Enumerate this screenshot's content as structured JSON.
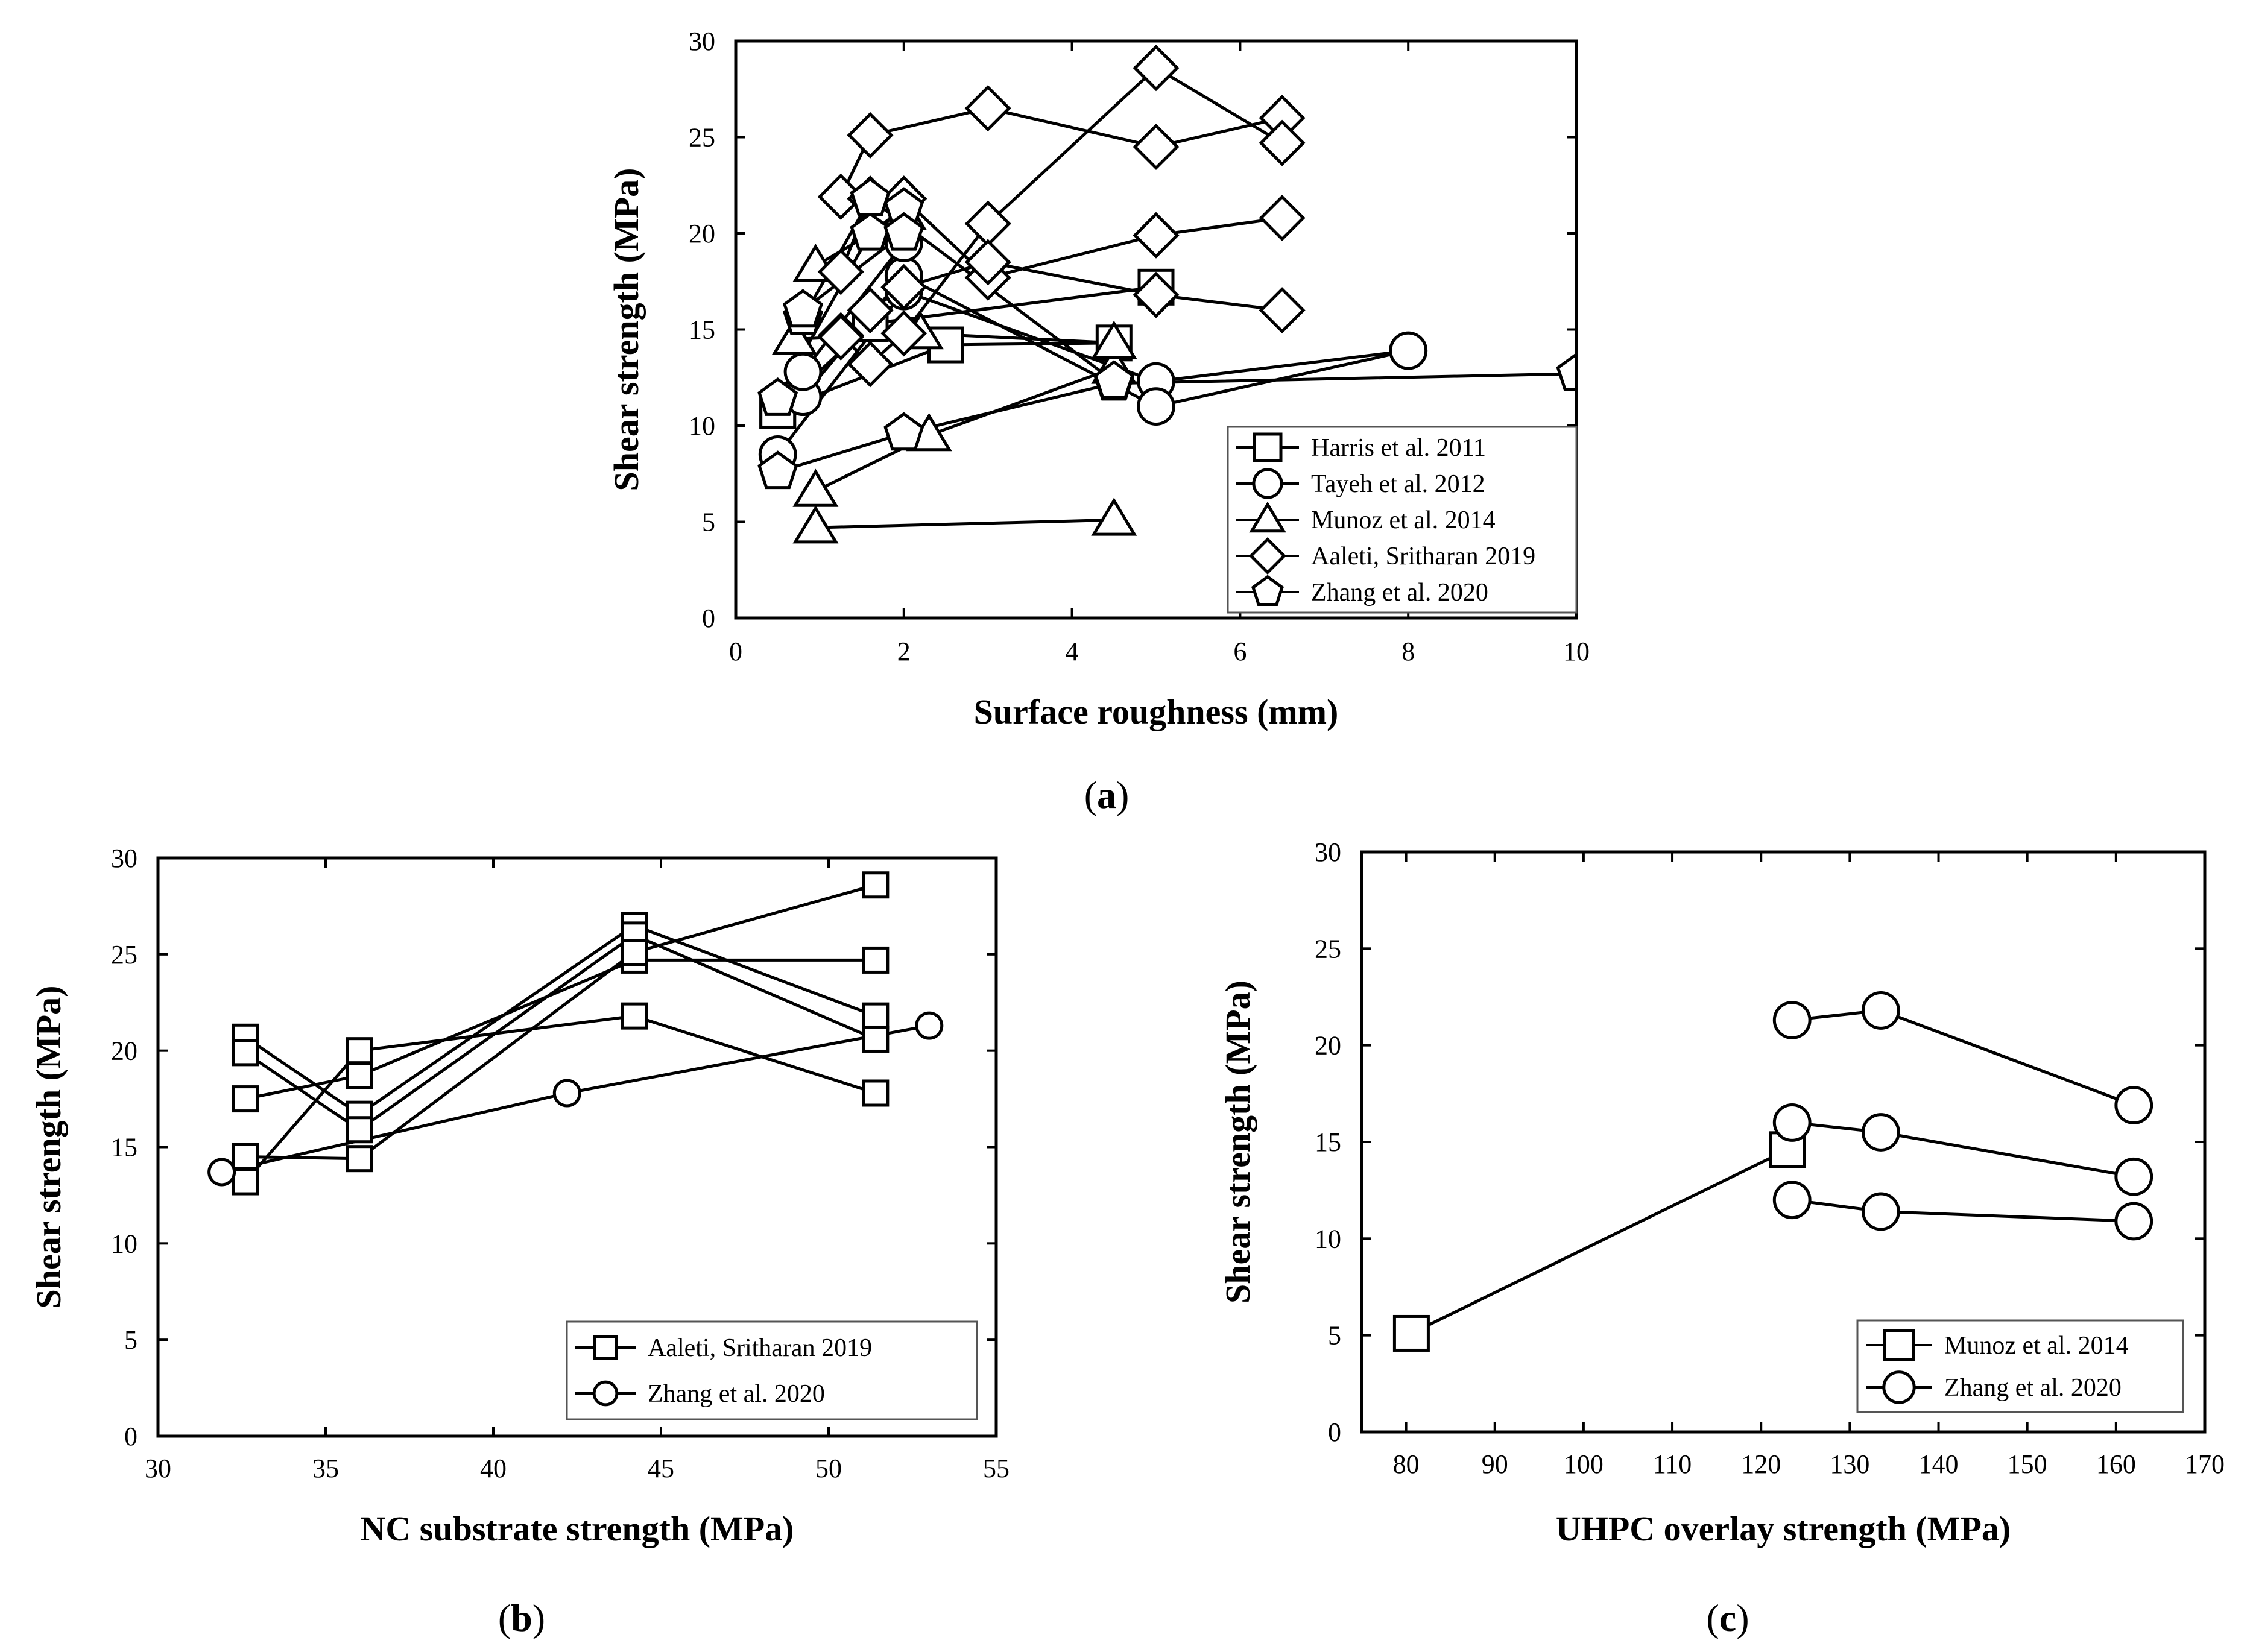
{
  "panels": {
    "a": {
      "label_open": "(",
      "label_letter": "a",
      "label_close": ")"
    },
    "b": {
      "label_open": "(",
      "label_letter": "b",
      "label_close": ")"
    },
    "c": {
      "label_open": "(",
      "label_letter": "c",
      "label_close": ")"
    }
  },
  "chart_data": [
    {
      "id": "a",
      "type": "line",
      "xlabel": "Surface roughness (mm)",
      "ylabel": "Shear strength (MPa)",
      "xlim": [
        0,
        10
      ],
      "ylim": [
        0,
        30
      ],
      "xticks": [
        0,
        2,
        4,
        6,
        8,
        10
      ],
      "yticks": [
        0,
        5,
        10,
        15,
        20,
        25,
        30
      ],
      "legend_position": "bottom-right",
      "series": [
        {
          "name": "Harris et al. 2011",
          "marker": "square",
          "lines": [
            [
              [
                0.5,
                10.8
              ],
              [
                2.5,
                14.2
              ],
              [
                4.5,
                14.3
              ]
            ],
            [
              [
                0.5,
                10.8
              ],
              [
                1.6,
                15.3
              ],
              [
                5.0,
                17.2
              ]
            ]
          ]
        },
        {
          "name": "Tayeh et al. 2012",
          "marker": "circle",
          "lines": [
            [
              [
                0.5,
                8.5
              ],
              [
                2.0,
                17.0
              ],
              [
                5.0,
                12.3
              ],
              [
                8.0,
                13.9
              ]
            ],
            [
              [
                0.8,
                11.5
              ],
              [
                2.0,
                17.8
              ],
              [
                5.0,
                11.0
              ],
              [
                8.0,
                13.9
              ]
            ],
            [
              [
                0.8,
                12.8
              ],
              [
                2.0,
                19.5
              ]
            ]
          ]
        },
        {
          "name": "Munoz et al. 2014",
          "marker": "triangle",
          "lines": [
            [
              [
                0.95,
                4.7
              ],
              [
                4.5,
                5.1
              ]
            ],
            [
              [
                0.95,
                6.6
              ],
              [
                2.3,
                9.5
              ],
              [
                4.5,
                13.0
              ]
            ],
            [
              [
                0.7,
                14.5
              ],
              [
                2.2,
                14.8
              ],
              [
                4.5,
                14.3
              ]
            ],
            [
              [
                0.95,
                18.3
              ],
              [
                2.0,
                21.0
              ]
            ]
          ]
        },
        {
          "name": "Aaleti, Sritharan 2019",
          "marker": "diamond",
          "lines": [
            [
              [
                1.25,
                21.9
              ],
              [
                1.6,
                25.1
              ],
              [
                3.0,
                26.5
              ],
              [
                5.0,
                24.5
              ],
              [
                6.5,
                26.0
              ]
            ],
            [
              [
                1.25,
                14.7
              ],
              [
                1.6,
                13.2
              ],
              [
                2.0,
                14.8
              ],
              [
                3.0,
                20.5
              ],
              [
                5.0,
                28.6
              ],
              [
                6.5,
                24.7
              ]
            ],
            [
              [
                1.25,
                18.0
              ],
              [
                1.6,
                21.8
              ],
              [
                2.0,
                21.8
              ],
              [
                3.0,
                17.7
              ],
              [
                5.0,
                19.9
              ],
              [
                6.5,
                20.8
              ]
            ],
            [
              [
                1.25,
                14.6
              ],
              [
                1.6,
                16.0
              ],
              [
                2.0,
                17.2
              ],
              [
                3.0,
                18.5
              ],
              [
                5.0,
                16.8
              ],
              [
                6.5,
                16.0
              ]
            ]
          ]
        },
        {
          "name": "Zhang et al. 2020",
          "marker": "pentagon",
          "lines": [
            [
              [
                0.5,
                7.6
              ],
              [
                2.0,
                9.6
              ],
              [
                4.5,
                12.2
              ],
              [
                10.0,
                12.7
              ]
            ],
            [
              [
                0.5,
                11.4
              ],
              [
                1.6,
                20.0
              ],
              [
                2.0,
                21.3
              ]
            ],
            [
              [
                0.8,
                15.6
              ],
              [
                1.6,
                21.8
              ],
              [
                4.5,
                12.3
              ]
            ],
            [
              [
                0.8,
                16.0
              ],
              [
                2.0,
                20.0
              ]
            ]
          ]
        }
      ]
    },
    {
      "id": "b",
      "type": "line",
      "xlabel": "NC substrate strength (MPa)",
      "ylabel": "Shear strength (MPa)",
      "xlim": [
        30,
        55
      ],
      "ylim": [
        0,
        30
      ],
      "xticks": [
        30,
        35,
        40,
        45,
        50,
        55
      ],
      "yticks": [
        0,
        5,
        10,
        15,
        20,
        25,
        30
      ],
      "legend_position": "bottom-right",
      "series": [
        {
          "name": "Aaleti, Sritharan 2019",
          "marker": "square",
          "lines": [
            [
              [
                32.6,
                20.7
              ],
              [
                36.0,
                16.7
              ],
              [
                44.2,
                26.5
              ],
              [
                51.4,
                21.8
              ]
            ],
            [
              [
                32.6,
                19.9
              ],
              [
                36.0,
                15.9
              ],
              [
                44.2,
                26.0
              ],
              [
                51.4,
                20.6
              ]
            ],
            [
              [
                32.6,
                17.5
              ],
              [
                36.0,
                18.7
              ],
              [
                44.2,
                24.7
              ],
              [
                51.4,
                24.7
              ]
            ],
            [
              [
                32.6,
                14.5
              ],
              [
                36.0,
                14.4
              ],
              [
                44.2,
                25.1
              ],
              [
                51.4,
                28.6
              ]
            ],
            [
              [
                32.6,
                13.2
              ],
              [
                36.0,
                20.0
              ],
              [
                44.2,
                21.8
              ],
              [
                51.4,
                17.8
              ]
            ]
          ]
        },
        {
          "name": "Zhang et al. 2020",
          "marker": "circle",
          "lines": [
            [
              [
                31.9,
                13.7
              ],
              [
                42.2,
                17.8
              ],
              [
                53.0,
                21.3
              ]
            ]
          ]
        }
      ]
    },
    {
      "id": "c",
      "type": "line",
      "xlabel": "UHPC overlay strength (MPa)",
      "ylabel": "Shear strength (MPa)",
      "xlim": [
        75,
        170
      ],
      "ylim": [
        0,
        30
      ],
      "xticks": [
        80,
        90,
        100,
        110,
        120,
        130,
        140,
        150,
        160,
        170
      ],
      "yticks": [
        0,
        5,
        10,
        15,
        20,
        25,
        30
      ],
      "legend_position": "bottom-right",
      "series": [
        {
          "name": "Munoz et al. 2014",
          "marker": "square",
          "lines": [
            [
              [
                80.6,
                5.1
              ],
              [
                123.0,
                14.6
              ]
            ]
          ]
        },
        {
          "name": "Zhang et al. 2020",
          "marker": "circle",
          "lines": [
            [
              [
                123.5,
                21.3
              ],
              [
                133.5,
                21.8
              ],
              [
                162.0,
                16.9
              ]
            ],
            [
              [
                123.5,
                16.0
              ],
              [
                133.5,
                15.5
              ],
              [
                162.0,
                13.2
              ]
            ],
            [
              [
                123.5,
                12.0
              ],
              [
                133.5,
                11.4
              ],
              [
                162.0,
                10.9
              ]
            ]
          ]
        }
      ]
    }
  ]
}
